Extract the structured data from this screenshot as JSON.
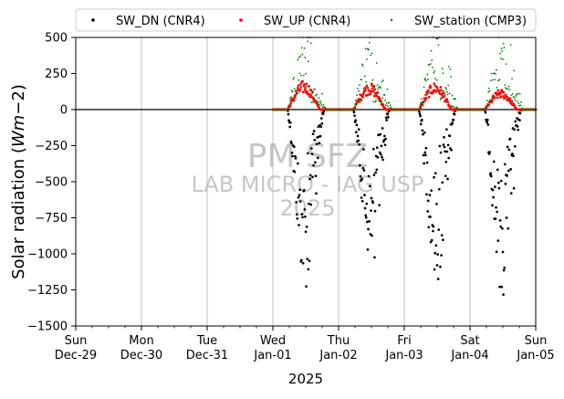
{
  "chart_data": {
    "type": "scatter",
    "title": "",
    "xlabel": "2025",
    "ylabel": "Solar radiation (Wm−2)",
    "ylabel_prefix": "Solar radiation (",
    "ylabel_unit_w": "W",
    "ylabel_unit_m": "m",
    "ylabel_unit_exp": "−2",
    "ylabel_suffix": ")",
    "ylim": [
      -1500,
      500
    ],
    "xlim": [
      "2024-12-29",
      "2025-01-05"
    ],
    "grid_x": true,
    "grid_y": false,
    "legend_placement": "top",
    "yticks": [
      {
        "value": 500,
        "label": "500"
      },
      {
        "value": 250,
        "label": "250"
      },
      {
        "value": 0,
        "label": "0"
      },
      {
        "value": -250,
        "label": "−250"
      },
      {
        "value": -500,
        "label": "−500"
      },
      {
        "value": -750,
        "label": "−750"
      },
      {
        "value": -1000,
        "label": "−1000"
      },
      {
        "value": -1250,
        "label": "−1250"
      },
      {
        "value": -1500,
        "label": "−1500"
      }
    ],
    "xticks": [
      {
        "date": "2024-12-29",
        "day": "Sun",
        "date_label": "Dec-29"
      },
      {
        "date": "2024-12-30",
        "day": "Mon",
        "date_label": "Dec-30"
      },
      {
        "date": "2024-12-31",
        "day": "Tue",
        "date_label": "Dec-31"
      },
      {
        "date": "2025-01-01",
        "day": "Wed",
        "date_label": "Jan-01"
      },
      {
        "date": "2025-01-02",
        "day": "Thu",
        "date_label": "Jan-02"
      },
      {
        "date": "2025-01-03",
        "day": "Fri",
        "date_label": "Jan-03"
      },
      {
        "date": "2025-01-04",
        "day": "Sat",
        "date_label": "Jan-04"
      },
      {
        "date": "2025-01-05",
        "day": "Sun",
        "date_label": "Jan-05"
      }
    ],
    "watermark": [
      "PM SFZ",
      "LAB MICRO - IAG USP",
      "2025"
    ],
    "series": [
      {
        "name": "SW_DN (CNR4)",
        "color": "#000000",
        "kind": "down",
        "days": [
          {
            "date": "2025-01-01",
            "sunrise": 0.22,
            "sunset": 0.78,
            "peak": -1250
          },
          {
            "date": "2025-01-02",
            "sunrise": 0.22,
            "sunset": 0.78,
            "peak": -1100
          },
          {
            "date": "2025-01-03",
            "sunrise": 0.22,
            "sunset": 0.78,
            "peak": -1220
          },
          {
            "date": "2025-01-04",
            "sunrise": 0.22,
            "sunset": 0.78,
            "peak": -1300
          }
        ]
      },
      {
        "name": "SW_UP (CNR4)",
        "color": "#ff0000",
        "kind": "up",
        "days": [
          {
            "date": "2025-01-01",
            "sunrise": 0.22,
            "sunset": 0.72,
            "peak": 200
          },
          {
            "date": "2025-01-02",
            "sunrise": 0.22,
            "sunset": 0.72,
            "peak": 185
          },
          {
            "date": "2025-01-03",
            "sunrise": 0.22,
            "sunset": 0.72,
            "peak": 190
          },
          {
            "date": "2025-01-04",
            "sunrise": 0.22,
            "sunset": 0.72,
            "peak": 140
          }
        ]
      },
      {
        "name": "SW_station (CMP3)",
        "color": "#008000",
        "kind": "station",
        "days": [
          {
            "date": "2025-01-01",
            "sunrise": 0.22,
            "sunset": 0.82,
            "peak": 500
          },
          {
            "date": "2025-01-02",
            "sunrise": 0.22,
            "sunset": 0.82,
            "peak": 500
          },
          {
            "date": "2025-01-03",
            "sunrise": 0.22,
            "sunset": 0.82,
            "peak": 500
          },
          {
            "date": "2025-01-04",
            "sunrise": 0.22,
            "sunset": 0.82,
            "peak": 480
          }
        ]
      }
    ]
  }
}
